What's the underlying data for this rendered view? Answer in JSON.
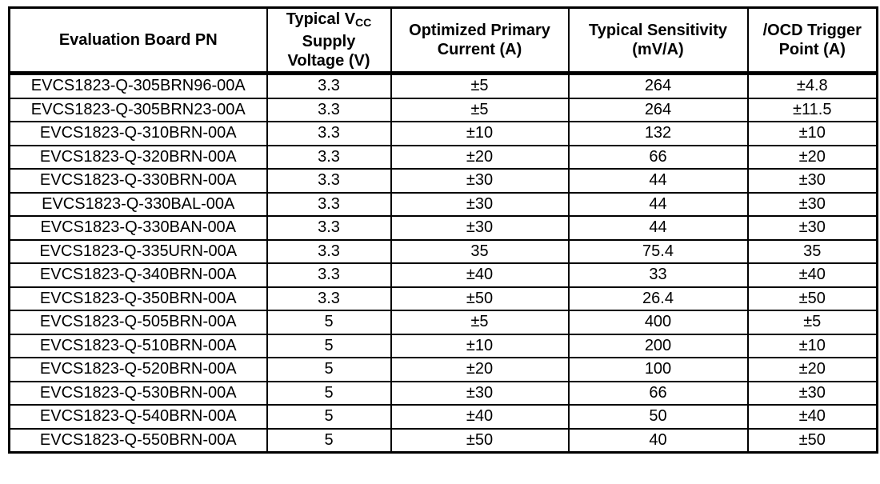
{
  "table": {
    "background": "#ffffff",
    "border_color": "#000000",
    "text_color": "#000000",
    "headers": {
      "board_pn": "Evaluation Board PN",
      "vcc": {
        "line1_prefix": "Typical V",
        "line1_sub": "CC",
        "line2": "Supply",
        "line3": "Voltage (V)"
      },
      "primary_current": {
        "line1": "Optimized Primary",
        "line2": "Current (A)"
      },
      "sensitivity": {
        "line1": "Typical Sensitivity",
        "line2": "(mV/A)"
      },
      "ocd": {
        "line1": "/OCD Trigger",
        "line2": "Point (A)"
      }
    },
    "rows": [
      [
        "EVCS1823-Q-305BRN96-00A",
        "3.3",
        "±5",
        "264",
        "±4.8"
      ],
      [
        "EVCS1823-Q-305BRN23-00A",
        "3.3",
        "±5",
        "264",
        "±11.5"
      ],
      [
        "EVCS1823-Q-310BRN-00A",
        "3.3",
        "±10",
        "132",
        "±10"
      ],
      [
        "EVCS1823-Q-320BRN-00A",
        "3.3",
        "±20",
        "66",
        "±20"
      ],
      [
        "EVCS1823-Q-330BRN-00A",
        "3.3",
        "±30",
        "44",
        "±30"
      ],
      [
        "EVCS1823-Q-330BAL-00A",
        "3.3",
        "±30",
        "44",
        "±30"
      ],
      [
        "EVCS1823-Q-330BAN-00A",
        "3.3",
        "±30",
        "44",
        "±30"
      ],
      [
        "EVCS1823-Q-335URN-00A",
        "3.3",
        "35",
        "75.4",
        "35"
      ],
      [
        "EVCS1823-Q-340BRN-00A",
        "3.3",
        "±40",
        "33",
        "±40"
      ],
      [
        "EVCS1823-Q-350BRN-00A",
        "3.3",
        "±50",
        "26.4",
        "±50"
      ],
      [
        "EVCS1823-Q-505BRN-00A",
        "5",
        "±5",
        "400",
        "±5"
      ],
      [
        "EVCS1823-Q-510BRN-00A",
        "5",
        "±10",
        "200",
        "±10"
      ],
      [
        "EVCS1823-Q-520BRN-00A",
        "5",
        "±20",
        "100",
        "±20"
      ],
      [
        "EVCS1823-Q-530BRN-00A",
        "5",
        "±30",
        "66",
        "±30"
      ],
      [
        "EVCS1823-Q-540BRN-00A",
        "5",
        "±40",
        "50",
        "±40"
      ],
      [
        "EVCS1823-Q-550BRN-00A",
        "5",
        "±50",
        "40",
        "±50"
      ]
    ]
  }
}
